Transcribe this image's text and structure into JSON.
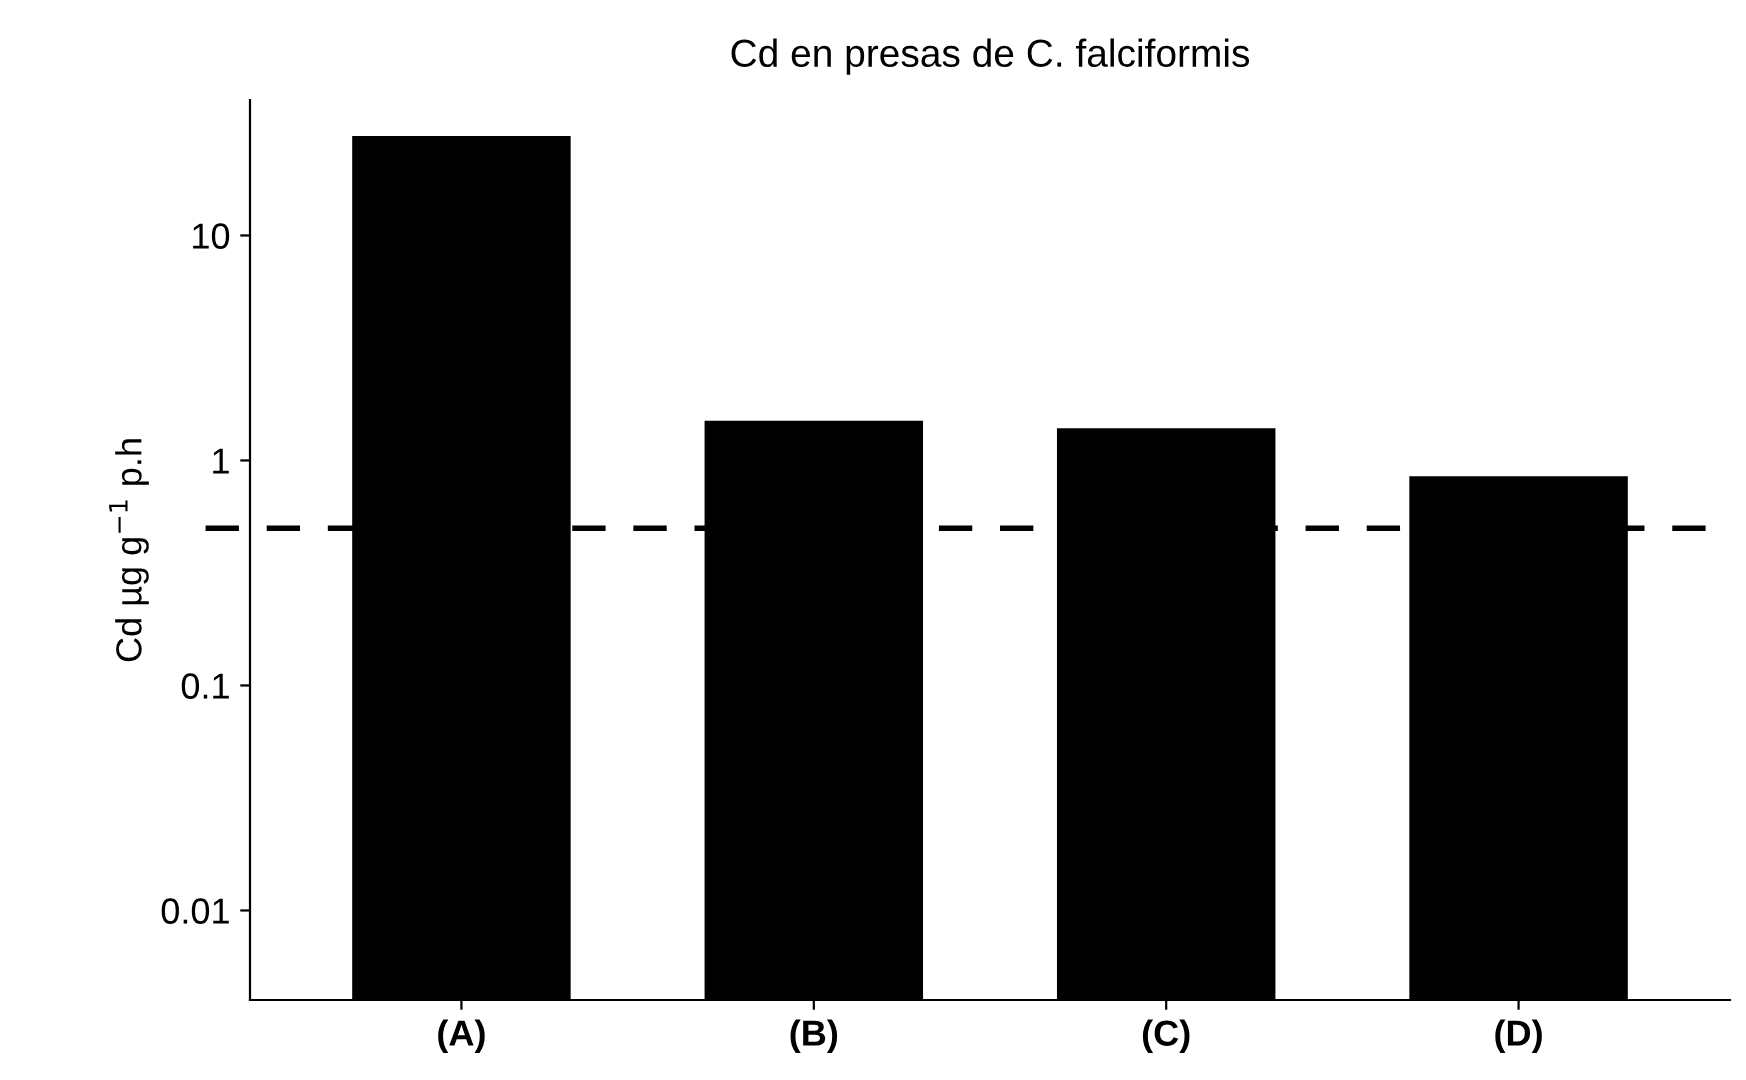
{
  "chart_data": {
    "type": "bar",
    "title": "Cd en presas de C. falciformis",
    "ylabel": "Cd µg g$^{−1}$ p.h",
    "categories": [
      "(A)",
      "(B)",
      "(C)",
      "(D)"
    ],
    "values": [
      27.7,
      1.5,
      1.39,
      0.85
    ],
    "color": "#000000",
    "log": true,
    "ylim": [
      0.004,
      40
    ],
    "yticks": [
      0.01,
      0.1,
      1,
      10
    ],
    "grid": false,
    "legend": false,
    "ref_lines": [
      {
        "axis": "y",
        "value": 0.5,
        "color": "#000000",
        "line_style": "dashed"
      }
    ]
  }
}
